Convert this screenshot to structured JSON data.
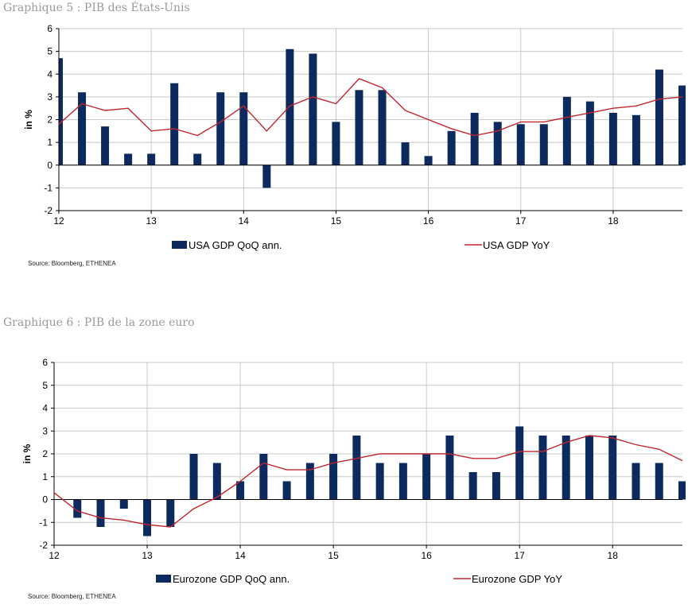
{
  "charts": [
    {
      "title": "Graphique 5 : PIB des États-Unis",
      "source": "Source: Bloomberg, ETHENEA",
      "colors": {
        "bar": "#0d2a5f",
        "line": "#c0262c",
        "grid": "#c8c8c8"
      },
      "chart_data": {
        "type": "bar",
        "ylabel": "in %",
        "ylim": [
          -2,
          6
        ],
        "yticks": [
          "-2",
          "-1",
          "0",
          "1",
          "2",
          "3",
          "4",
          "5",
          "6"
        ],
        "xlim": [
          12,
          18.75
        ],
        "xticks": [
          "12",
          "13",
          "14",
          "15",
          "16",
          "17",
          "18"
        ],
        "grid": true,
        "legend_placement": "bottom",
        "series": [
          {
            "name": "USA GDP QoQ ann.",
            "kind": "bar",
            "x": [
              12.0,
              12.25,
              12.5,
              12.75,
              13.0,
              13.25,
              13.5,
              13.75,
              14.0,
              14.25,
              14.5,
              14.75,
              15.0,
              15.25,
              15.5,
              15.75,
              16.0,
              16.25,
              16.5,
              16.75,
              17.0,
              17.25,
              17.5,
              17.75,
              18.0,
              18.25,
              18.5,
              18.75
            ],
            "values": [
              4.7,
              3.2,
              1.7,
              0.5,
              0.5,
              3.6,
              0.5,
              3.2,
              3.2,
              -1.0,
              5.1,
              4.9,
              1.9,
              3.3,
              3.3,
              1.0,
              0.4,
              1.5,
              2.3,
              1.9,
              1.8,
              1.8,
              3.0,
              2.8,
              2.3,
              2.2,
              4.2,
              3.5
            ]
          },
          {
            "name": "USA GDP YoY",
            "kind": "line",
            "x": [
              12.0,
              12.25,
              12.5,
              12.75,
              13.0,
              13.25,
              13.5,
              13.75,
              14.0,
              14.25,
              14.5,
              14.75,
              15.0,
              15.25,
              15.5,
              15.75,
              16.0,
              16.25,
              16.5,
              16.75,
              17.0,
              17.25,
              17.5,
              17.75,
              18.0,
              18.25,
              18.5,
              18.75
            ],
            "values": [
              1.8,
              2.7,
              2.4,
              2.5,
              1.5,
              1.6,
              1.3,
              1.9,
              2.6,
              1.5,
              2.6,
              3.0,
              2.7,
              3.8,
              3.4,
              2.4,
              2.0,
              1.6,
              1.3,
              1.5,
              1.9,
              1.9,
              2.1,
              2.3,
              2.5,
              2.6,
              2.9,
              3.0
            ]
          }
        ]
      }
    },
    {
      "title": "Graphique 6 : PIB de la zone euro",
      "source": "Source: Bloomberg, ETHENEA",
      "colors": {
        "bar": "#0d2a5f",
        "line": "#c0262c",
        "grid": "#c8c8c8"
      },
      "chart_data": {
        "type": "bar",
        "ylabel": "in %",
        "ylim": [
          -2,
          6
        ],
        "yticks": [
          "-2",
          "-1",
          "0",
          "1",
          "2",
          "3",
          "4",
          "5",
          "6"
        ],
        "xlim": [
          12,
          18.75
        ],
        "xticks": [
          "12",
          "13",
          "14",
          "15",
          "16",
          "17",
          "18"
        ],
        "grid": true,
        "legend_placement": "bottom",
        "series": [
          {
            "name": "Eurozone GDP QoQ ann.",
            "kind": "bar",
            "x": [
              12.0,
              12.25,
              12.5,
              12.75,
              13.0,
              13.25,
              13.5,
              13.75,
              14.0,
              14.25,
              14.5,
              14.75,
              15.0,
              15.25,
              15.5,
              15.75,
              16.0,
              16.25,
              16.5,
              16.75,
              17.0,
              17.25,
              17.5,
              17.75,
              18.0,
              18.25,
              18.5,
              18.75
            ],
            "values": [
              0.0,
              -0.8,
              -1.2,
              -0.4,
              -1.6,
              -1.2,
              2.0,
              1.6,
              0.8,
              2.0,
              0.8,
              1.6,
              2.0,
              2.8,
              1.6,
              1.6,
              2.0,
              2.8,
              1.2,
              1.2,
              3.2,
              2.8,
              2.8,
              2.8,
              2.8,
              1.6,
              1.6,
              0.8
            ]
          },
          {
            "name": "Eurozone GDP YoY",
            "kind": "line",
            "x": [
              12.0,
              12.25,
              12.5,
              12.75,
              13.0,
              13.25,
              13.5,
              13.75,
              14.0,
              14.25,
              14.5,
              14.75,
              15.0,
              15.25,
              15.5,
              15.75,
              16.0,
              16.25,
              16.5,
              16.75,
              17.0,
              17.25,
              17.5,
              17.75,
              18.0,
              18.25,
              18.5,
              18.75
            ],
            "values": [
              0.3,
              -0.5,
              -0.8,
              -0.9,
              -1.1,
              -1.2,
              -0.4,
              0.1,
              0.8,
              1.6,
              1.3,
              1.3,
              1.6,
              1.8,
              2.0,
              2.0,
              2.0,
              2.0,
              1.8,
              1.8,
              2.1,
              2.1,
              2.5,
              2.8,
              2.7,
              2.4,
              2.2,
              1.7
            ]
          }
        ]
      }
    }
  ]
}
